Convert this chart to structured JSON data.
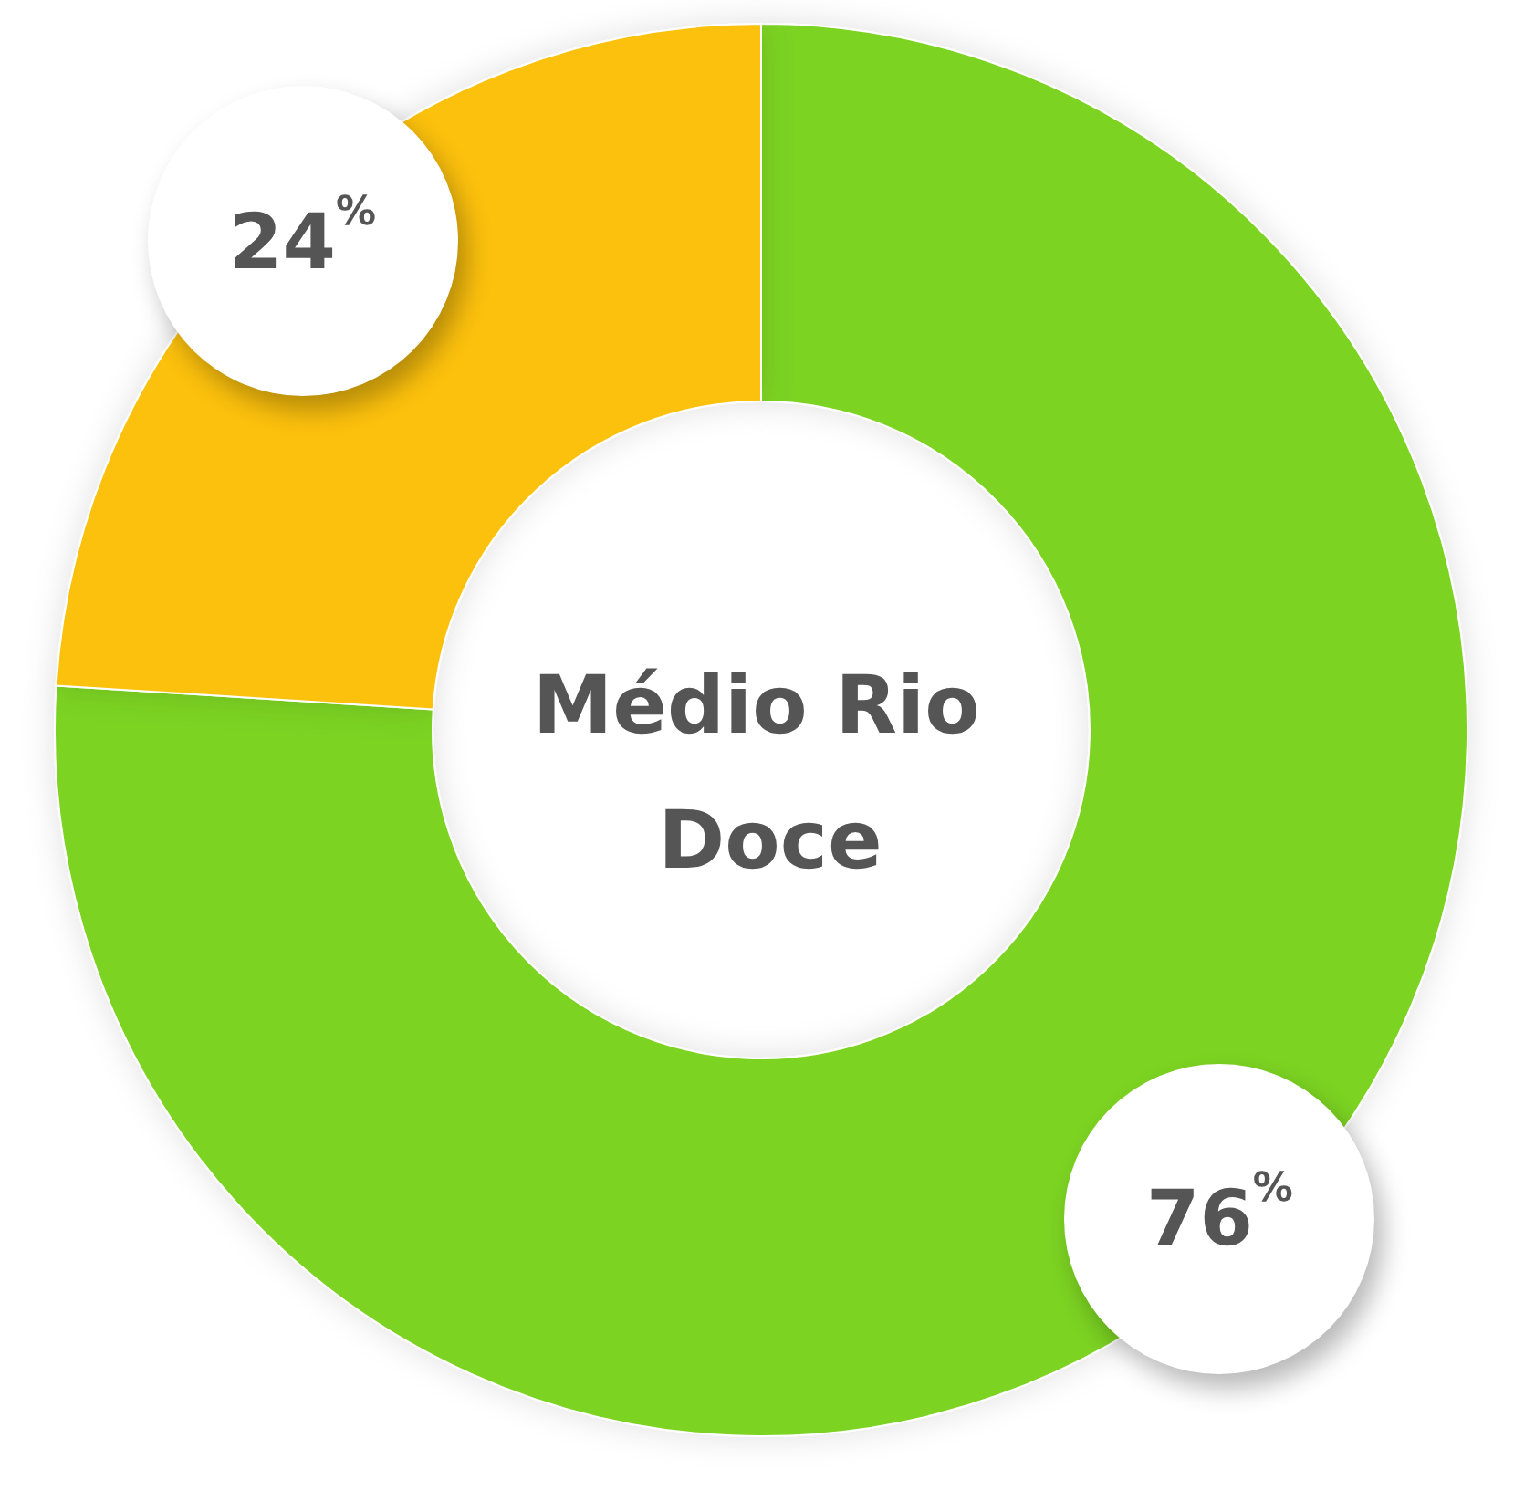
{
  "chart_data": {
    "type": "donut",
    "title": "Médio Rio Doce",
    "categories": [
      null,
      null
    ],
    "values": [
      76,
      24
    ],
    "colors": [
      "#7bd321",
      "#fcc10f"
    ],
    "value_labels": [
      "76$^{%}$",
      "24$^{%}$"
    ]
  }
}
